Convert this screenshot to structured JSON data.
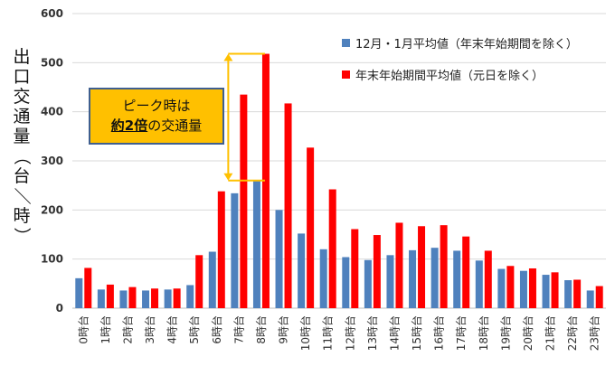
{
  "chart_data": {
    "type": "bar",
    "ylabel": "出口交通量（台／時）",
    "ylim": [
      0,
      600
    ],
    "yticks": [
      0,
      100,
      200,
      300,
      400,
      500,
      600
    ],
    "grid": true,
    "legend_position": "top-right",
    "categories": [
      "0時台",
      "1時台",
      "2時台",
      "3時台",
      "4時台",
      "5時台",
      "6時台",
      "7時台",
      "8時台",
      "9時台",
      "10時台",
      "11時台",
      "12時台",
      "13時台",
      "14時台",
      "15時台",
      "16時台",
      "17時台",
      "18時台",
      "19時台",
      "20時台",
      "21時台",
      "22時台",
      "23時台"
    ],
    "series": [
      {
        "name": "12月・1月平均値（年末年始期間を除く）",
        "color": "#4f81bd",
        "values": [
          61,
          38,
          36,
          36,
          38,
          47,
          115,
          234,
          260,
          200,
          152,
          120,
          104,
          98,
          108,
          118,
          123,
          117,
          97,
          80,
          76,
          68,
          57,
          36
        ]
      },
      {
        "name": "年末年始期間平均値（元日を除く）",
        "color": "#ff0000",
        "values": [
          82,
          48,
          43,
          40,
          40,
          108,
          238,
          435,
          518,
          417,
          327,
          242,
          161,
          149,
          174,
          167,
          169,
          146,
          117,
          86,
          81,
          73,
          58,
          45
        ]
      }
    ],
    "annotation": {
      "text_parts": [
        "ピーク時は",
        "約2倍",
        "の交通量"
      ],
      "arrow_category": "7時台",
      "arrow_from": 260,
      "arrow_to": 518
    }
  }
}
